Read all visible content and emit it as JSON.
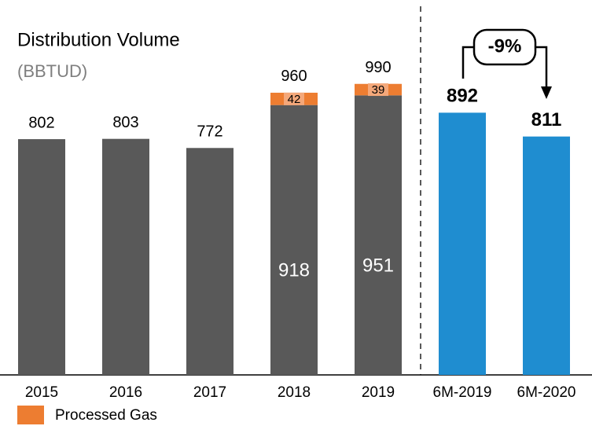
{
  "chart_data": {
    "type": "bar",
    "title": "Distribution Volume",
    "subtitle": "(BBTUD)",
    "categories": [
      "2015",
      "2016",
      "2017",
      "2018",
      "2019",
      "6M-2019",
      "6M-2020"
    ],
    "series": [
      {
        "color": "#595959",
        "values": [
          802,
          803,
          772,
          918,
          951,
          null,
          null
        ]
      },
      {
        "name": "Processed Gas",
        "color": "#ed7d31",
        "values": [
          null,
          null,
          null,
          42,
          39,
          null,
          null
        ]
      },
      {
        "color": "#1f8dd0",
        "values": [
          null,
          null,
          null,
          null,
          null,
          892,
          811
        ]
      }
    ],
    "totals": [
      null,
      null,
      null,
      960,
      990,
      null,
      null
    ],
    "annotation": "-9%",
    "ylim": [
      0,
      1000
    ],
    "legend": "bottom-left"
  }
}
